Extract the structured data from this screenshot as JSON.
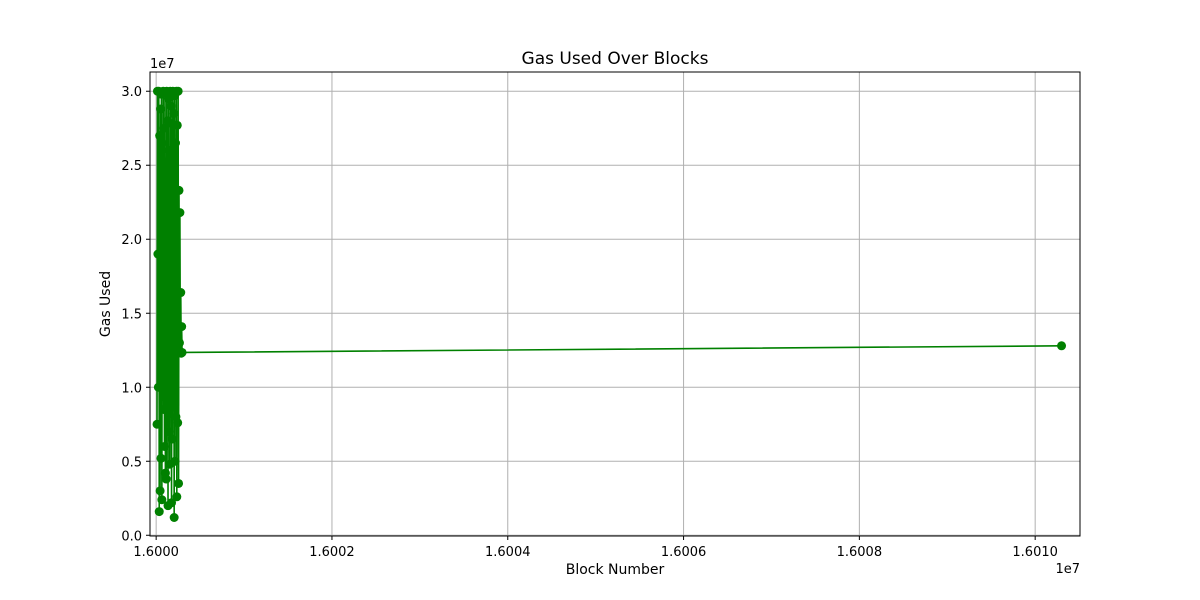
{
  "chart_data": {
    "type": "line",
    "title": "Gas Used Over Blocks",
    "xlabel": "Block Number",
    "ylabel": "Gas Used",
    "x_offset_label": "1e7",
    "y_offset_label": "1e7",
    "xlim": [
      15999930,
      16010510
    ],
    "ylim": [
      -50000,
      31300000
    ],
    "x_ticks": [
      16000000,
      16002000,
      16004000,
      16006000,
      16008000,
      16010000
    ],
    "x_tick_labels": [
      "1.6000",
      "1.6002",
      "1.6004",
      "1.6006",
      "1.6008",
      "1.6010"
    ],
    "y_ticks": [
      0,
      5000000,
      10000000,
      15000000,
      20000000,
      25000000,
      30000000
    ],
    "y_tick_labels": [
      "0.0",
      "0.5",
      "1.0",
      "1.5",
      "2.0",
      "2.5",
      "3.0"
    ],
    "grid": true,
    "marker": "circle",
    "line_color": "#008000",
    "series": [
      {
        "x": [
          16000010,
          16000015,
          16000020,
          16000025,
          16000030,
          16000035,
          16000040,
          16000045,
          16000050,
          16000055,
          16000060,
          16000065,
          16000070,
          16000075,
          16000080,
          16000085,
          16000090,
          16000095,
          16000100,
          16000105,
          16000110,
          16000115,
          16000120,
          16000125,
          16000130,
          16000135,
          16000140,
          16000145,
          16000150,
          16000155,
          16000160,
          16000165,
          16000170,
          16000175,
          16000180,
          16000185,
          16000190,
          16000195,
          16000200,
          16000205,
          16000210,
          16000215,
          16000220,
          16000225,
          16000230,
          16000235,
          16000240,
          16000245,
          16000250,
          16000255,
          16000260,
          16000265,
          16000270,
          16000275,
          16000280,
          16000285,
          16000290,
          16000295,
          16010300
        ],
        "y": [
          7500000,
          30000000,
          19000000,
          10000000,
          30000000,
          1600000,
          27000000,
          3000000,
          28800000,
          5200000,
          29800000,
          2400000,
          26500000,
          11000000,
          30000000,
          8500000,
          27500000,
          6000000,
          29900000,
          4200000,
          25000000,
          3800000,
          30000000,
          9500000,
          28000000,
          2000000,
          29500000,
          7000000,
          26000000,
          4800000,
          30000000,
          12000000,
          29000000,
          2200000,
          27800000,
          6500000,
          30000000,
          10000000,
          28500000,
          1200000,
          29700000,
          5000000,
          26500000,
          8000000,
          30000000,
          2600000,
          27700000,
          7600000,
          30000000,
          3500000,
          23300000,
          13000000,
          21800000,
          12400000,
          16400000,
          12300000,
          14100000,
          12350000,
          12800000
        ]
      }
    ]
  }
}
